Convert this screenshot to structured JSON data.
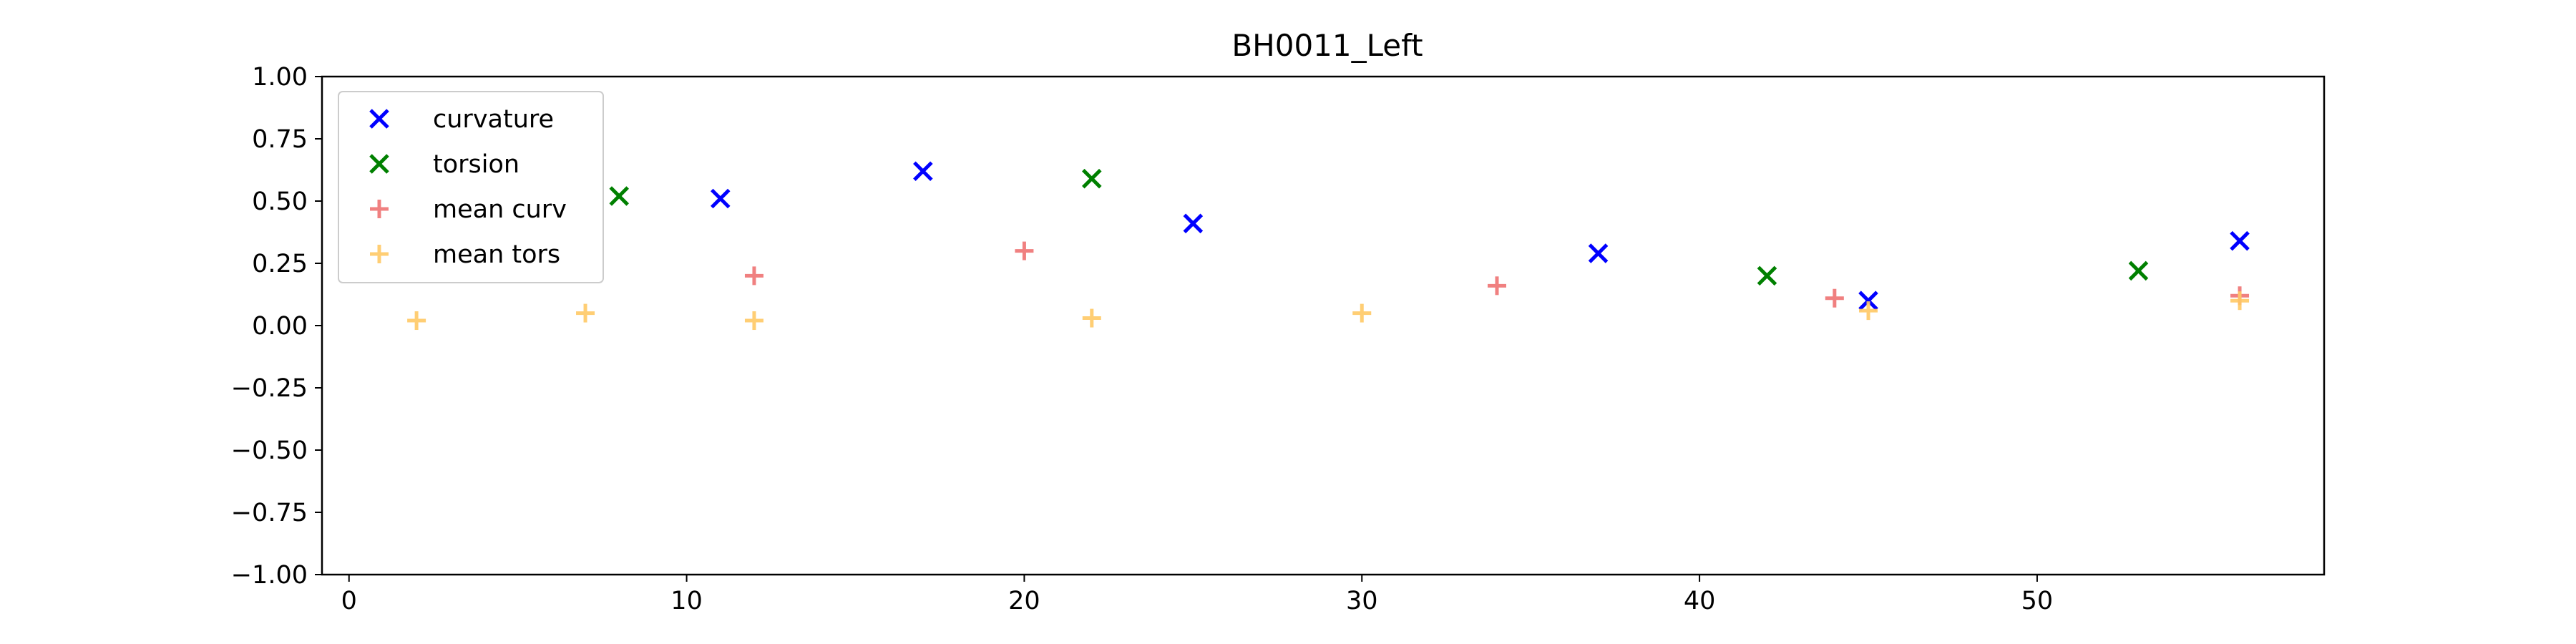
{
  "chart_data": {
    "type": "scatter",
    "title": "BH0011_Left",
    "xlabel": "",
    "ylabel": "",
    "xlim": [
      -0.8,
      58.5
    ],
    "ylim": [
      -1.0,
      1.0
    ],
    "xticks": [
      0,
      10,
      20,
      30,
      40,
      50
    ],
    "yticks": [
      -1.0,
      -0.75,
      -0.5,
      -0.25,
      0.0,
      0.25,
      0.5,
      0.75,
      1.0
    ],
    "ytick_labels": [
      "−1.00",
      "−0.75",
      "−0.50",
      "−0.25",
      "0.00",
      "0.25",
      "0.50",
      "0.75",
      "1.00"
    ],
    "xtick_labels": [
      "0",
      "10",
      "20",
      "30",
      "40",
      "50"
    ],
    "grid": false,
    "legend_position": "top-left",
    "series": [
      {
        "name": "curvature",
        "marker": "x",
        "color": "#0000ff",
        "opacity": 1,
        "points": [
          [
            11,
            0.51
          ],
          [
            17,
            0.62
          ],
          [
            25,
            0.41
          ],
          [
            37,
            0.29
          ],
          [
            45,
            0.1
          ],
          [
            56,
            0.34
          ]
        ]
      },
      {
        "name": "torsion",
        "marker": "x",
        "color": "#008000",
        "opacity": 1,
        "points": [
          [
            8,
            0.52
          ],
          [
            22,
            0.59
          ],
          [
            42,
            0.2
          ],
          [
            53,
            0.22
          ]
        ]
      },
      {
        "name": "mean curv",
        "marker": "+",
        "color": "#f08080",
        "opacity": 1,
        "points": [
          [
            12,
            0.2
          ],
          [
            20,
            0.3
          ],
          [
            34,
            0.16
          ],
          [
            44,
            0.11
          ],
          [
            56,
            0.12
          ]
        ]
      },
      {
        "name": "mean tors",
        "marker": "+",
        "color": "#ffc966",
        "opacity": 0.9,
        "points": [
          [
            2,
            0.02
          ],
          [
            7,
            0.05
          ],
          [
            12,
            0.02
          ],
          [
            22,
            0.03
          ],
          [
            30,
            0.05
          ],
          [
            45,
            0.06
          ],
          [
            56,
            0.1
          ]
        ]
      }
    ]
  }
}
